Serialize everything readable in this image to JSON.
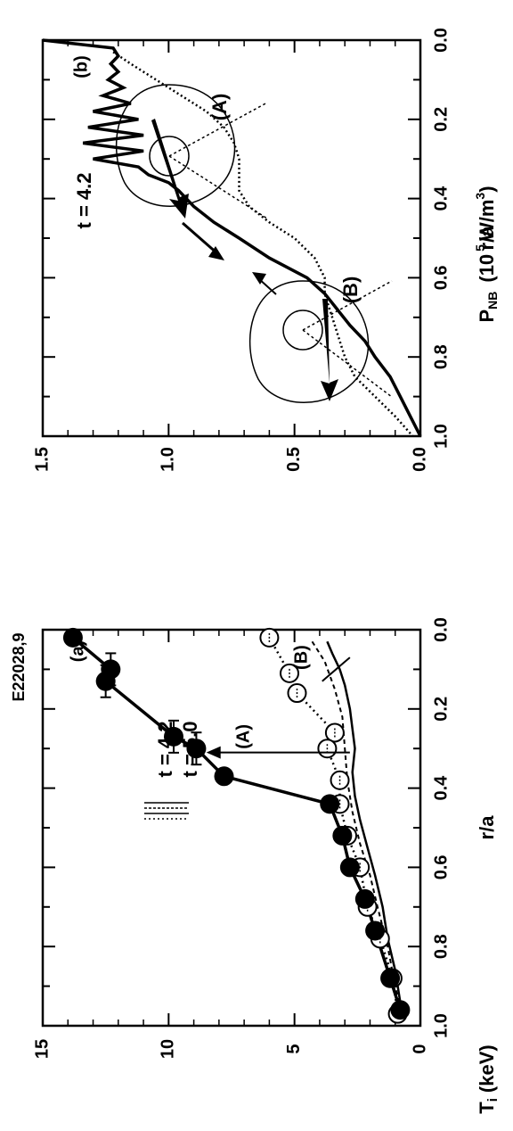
{
  "chart_data": [
    {
      "id": "a",
      "type": "scatter",
      "panel_label": "(a)",
      "shot_label": "E22028,9",
      "xlabel": "r/a",
      "ylabel": "T",
      "ylabel_sub": "i",
      "ylabel_unit": "(keV)",
      "xlim": [
        0,
        1.0
      ],
      "ylim": [
        0,
        15
      ],
      "xticks": [
        "0.0",
        "0.2",
        "0.4",
        "0.6",
        "0.8",
        "1.0"
      ],
      "yticks": [
        "0",
        "5",
        "10",
        "15"
      ],
      "legend": [
        {
          "label": "t = 4.2",
          "style": "thin solid + dashed"
        },
        {
          "label": "t = 5.0",
          "style": "thick solid + dotted"
        }
      ],
      "annotations": [
        "(A)",
        "(B)"
      ],
      "series": [
        {
          "name": "t = 5.0",
          "style": "filled-markers-thick-line",
          "x": [
            0.02,
            0.1,
            0.13,
            0.27,
            0.3,
            0.37,
            0.44,
            0.52,
            0.6,
            0.68,
            0.76,
            0.88,
            0.96
          ],
          "y": [
            13.8,
            12.3,
            12.5,
            9.8,
            8.9,
            7.8,
            3.6,
            3.1,
            2.8,
            2.2,
            1.8,
            1.2,
            0.8
          ]
        },
        {
          "name": "t = 4.2",
          "style": "open-markers-dotted-line",
          "x": [
            0.02,
            0.11,
            0.16,
            0.26,
            0.3,
            0.38,
            0.44,
            0.52,
            0.6,
            0.7,
            0.78,
            0.88,
            0.97
          ],
          "y": [
            6.0,
            5.2,
            4.9,
            3.4,
            3.7,
            3.2,
            3.2,
            2.9,
            2.4,
            2.1,
            1.6,
            1.1,
            0.9
          ]
        },
        {
          "name": "t = 4.2 (thin)",
          "style": "thin-solid",
          "x": [
            0.03,
            0.06,
            0.1,
            0.14,
            0.2,
            0.25,
            0.3,
            0.36,
            0.42,
            0.48,
            0.55,
            0.62,
            0.7,
            0.78,
            0.86,
            0.94,
            0.98
          ],
          "y": [
            3.7,
            3.5,
            3.2,
            3.0,
            2.8,
            2.7,
            2.6,
            2.7,
            2.6,
            2.4,
            2.1,
            1.8,
            1.5,
            1.3,
            1.0,
            0.8,
            0.6
          ]
        },
        {
          "name": "t = 4.2 (dashed)",
          "style": "dashed",
          "x": [
            0.03,
            0.08,
            0.15,
            0.22,
            0.3,
            0.38,
            0.46,
            0.54,
            0.62,
            0.7,
            0.8,
            0.9,
            0.98
          ],
          "y": [
            4.3,
            3.8,
            3.4,
            3.1,
            3.0,
            2.9,
            2.7,
            2.4,
            2.0,
            1.7,
            1.3,
            1.0,
            0.7
          ]
        }
      ]
    },
    {
      "id": "b",
      "type": "line",
      "panel_label": "(b)",
      "xlabel": "r/a",
      "ylabel": "P",
      "ylabel_sub": "NB",
      "ylabel_unit": "(10",
      "ylabel_unit_sup": "5",
      "ylabel_unit_tail": "W/m",
      "ylabel_unit_sup2": "3",
      "ylabel_unit_close": ")",
      "xlim": [
        0,
        1.0
      ],
      "ylim": [
        0,
        1.5
      ],
      "xticks": [
        "0.0",
        "0.2",
        "0.4",
        "0.6",
        "0.8",
        "1.0"
      ],
      "yticks": [
        "0.0",
        "0.5",
        "1.0",
        "1.5"
      ],
      "annotations": [
        "t = 4.2",
        "(A)",
        "(B)"
      ],
      "series": [
        {
          "name": "(A)",
          "style": "thick-solid",
          "x": [
            0.0,
            0.02,
            0.04,
            0.06,
            0.08,
            0.1,
            0.12,
            0.14,
            0.16,
            0.18,
            0.2,
            0.22,
            0.24,
            0.26,
            0.28,
            0.3,
            0.32,
            0.34,
            0.36,
            0.38,
            0.42,
            0.46,
            0.5,
            0.55,
            0.6,
            0.64,
            0.68,
            0.72,
            0.76,
            0.8,
            0.85,
            0.9,
            0.95,
            1.0
          ],
          "y": [
            1.5,
            1.22,
            1.2,
            1.23,
            1.2,
            1.24,
            1.18,
            1.26,
            1.15,
            1.3,
            1.12,
            1.32,
            1.1,
            1.34,
            1.1,
            1.3,
            1.12,
            1.08,
            1.0,
            0.96,
            0.9,
            0.82,
            0.72,
            0.6,
            0.45,
            0.38,
            0.33,
            0.28,
            0.22,
            0.18,
            0.12,
            0.08,
            0.04,
            0.0
          ]
        },
        {
          "name": "(B)",
          "style": "dotted",
          "x": [
            0.03,
            0.06,
            0.1,
            0.14,
            0.18,
            0.22,
            0.26,
            0.3,
            0.34,
            0.38,
            0.42,
            0.46,
            0.5,
            0.55,
            0.6,
            0.64,
            0.68,
            0.72,
            0.76,
            0.8,
            0.85,
            0.9,
            0.95,
            1.0
          ],
          "y": [
            1.22,
            1.15,
            1.05,
            0.95,
            0.85,
            0.78,
            0.74,
            0.72,
            0.72,
            0.72,
            0.68,
            0.6,
            0.5,
            0.42,
            0.38,
            0.38,
            0.36,
            0.34,
            0.32,
            0.3,
            0.26,
            0.18,
            0.1,
            0.03
          ]
        }
      ]
    }
  ]
}
